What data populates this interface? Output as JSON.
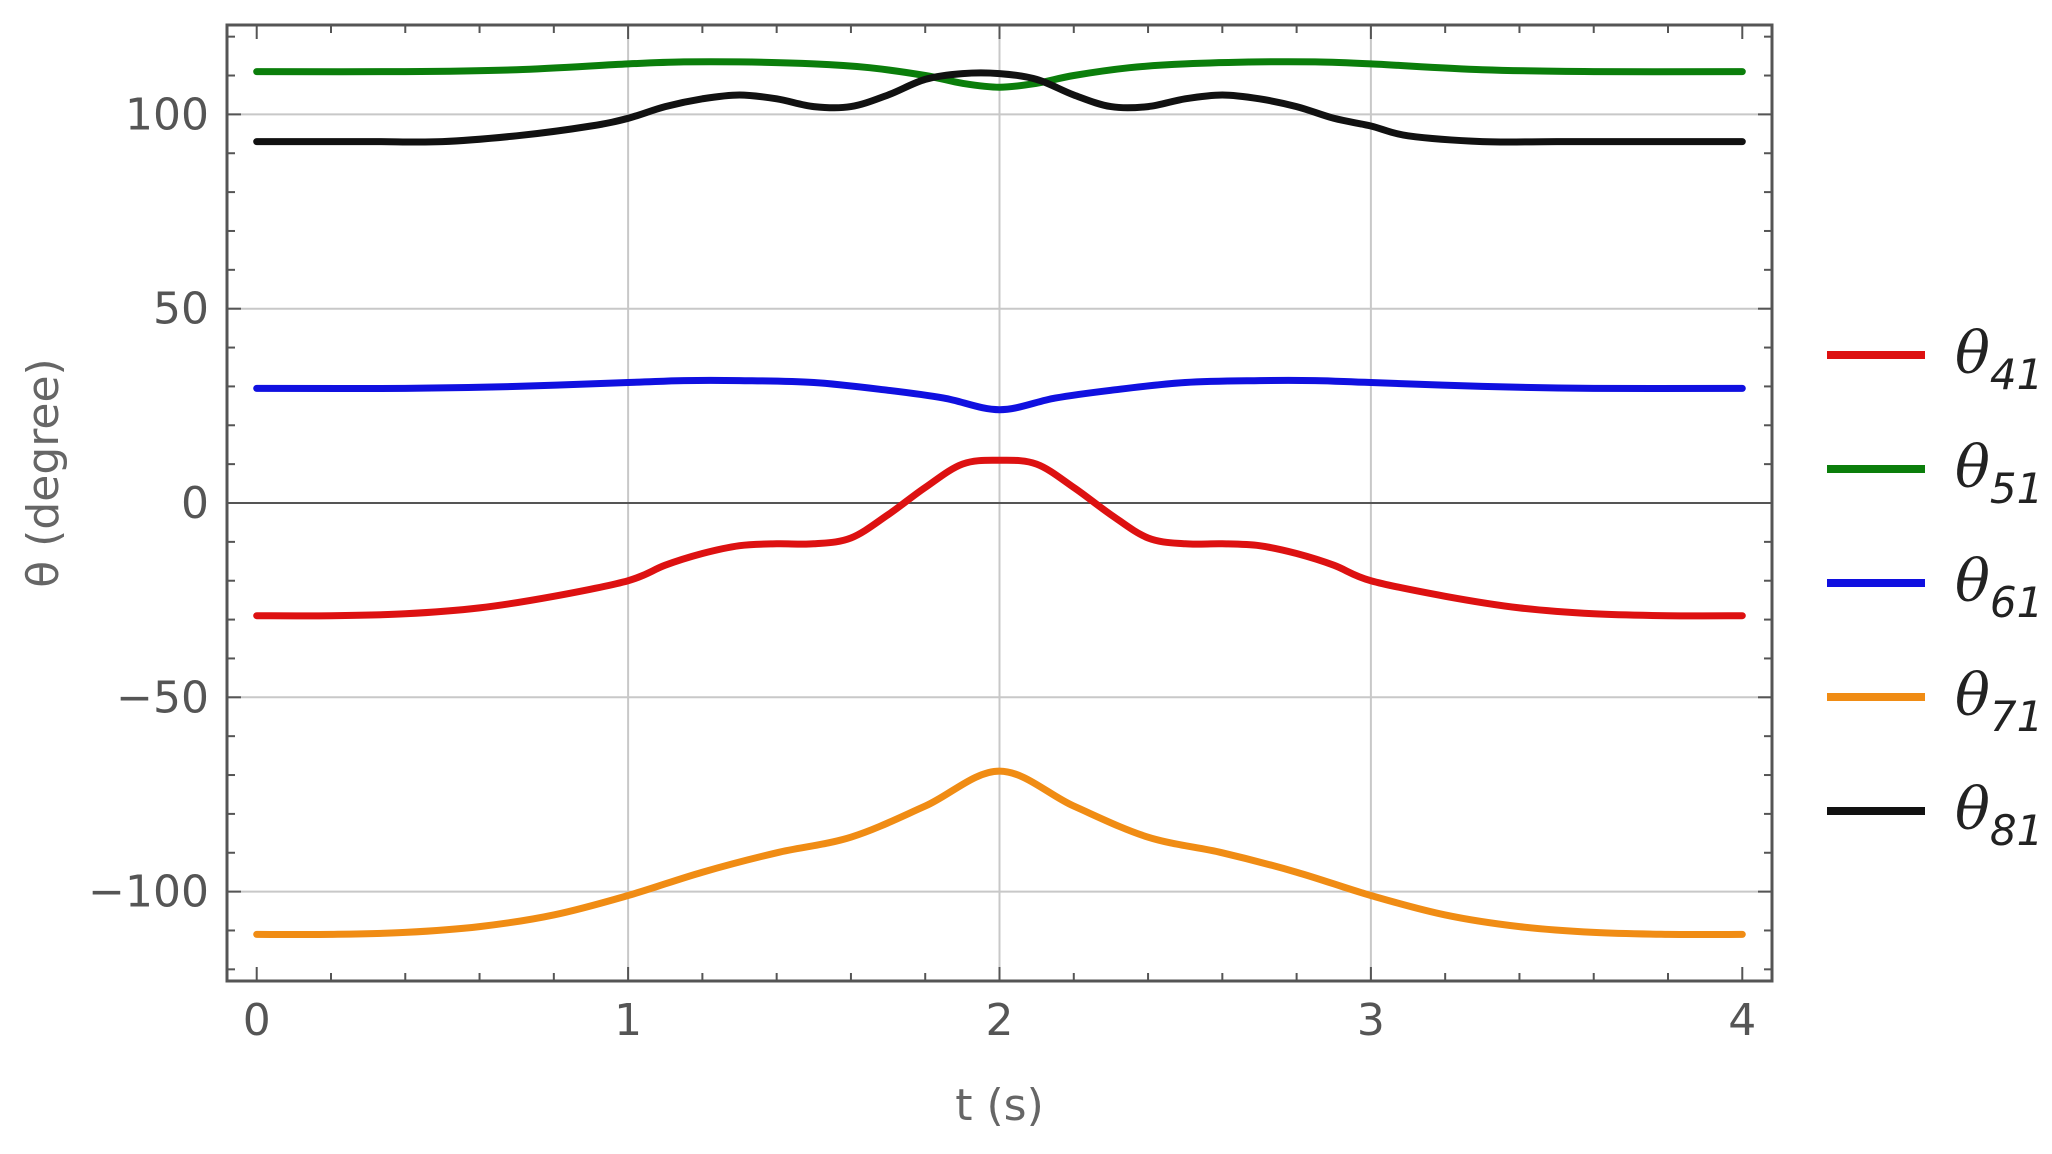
{
  "chart_data": {
    "type": "line",
    "xlabel": "t (s)",
    "ylabel": "θ (degree)",
    "xlim": [
      -0.08,
      4.08
    ],
    "ylim": [
      -123,
      123
    ],
    "xticks": [
      0,
      1,
      2,
      3,
      4
    ],
    "yticks": [
      -100,
      -50,
      0,
      50,
      100
    ],
    "grid": true,
    "legend_position": "right",
    "series": [
      {
        "name": "θ41",
        "symbol": "θ",
        "subscript": "41",
        "color": "#dd1111",
        "x": [
          0,
          0.2,
          0.4,
          0.6,
          0.8,
          1.0,
          1.1,
          1.2,
          1.3,
          1.4,
          1.5,
          1.6,
          1.7,
          1.8,
          1.9,
          2.0,
          2.1,
          2.2,
          2.3,
          2.4,
          2.5,
          2.6,
          2.7,
          2.8,
          2.9,
          3.0,
          3.2,
          3.4,
          3.6,
          3.8,
          4.0
        ],
        "values": [
          -29,
          -29,
          -28.5,
          -27,
          -24,
          -20,
          -16,
          -13,
          -11,
          -10.5,
          -10.5,
          -9,
          -3,
          4,
          10,
          11,
          10,
          4,
          -3,
          -9,
          -10.5,
          -10.5,
          -11,
          -13,
          -16,
          -20,
          -24,
          -27,
          -28.5,
          -29,
          -29
        ]
      },
      {
        "name": "θ51",
        "symbol": "θ",
        "subscript": "51",
        "color": "#0b7e0b",
        "x": [
          0,
          0.4,
          0.7,
          1.0,
          1.15,
          1.3,
          1.5,
          1.65,
          1.8,
          1.9,
          2.0,
          2.1,
          2.2,
          2.35,
          2.5,
          2.7,
          2.85,
          3.0,
          3.3,
          3.6,
          4.0
        ],
        "values": [
          111,
          111,
          111.5,
          113,
          113.5,
          113.5,
          113,
          112,
          110,
          108,
          107,
          108,
          110,
          112,
          113,
          113.5,
          113.5,
          113,
          111.5,
          111,
          111
        ]
      },
      {
        "name": "θ61",
        "symbol": "θ",
        "subscript": "61",
        "color": "#1010e0",
        "x": [
          0,
          0.4,
          0.7,
          1.0,
          1.15,
          1.3,
          1.5,
          1.7,
          1.85,
          2.0,
          2.15,
          2.3,
          2.5,
          2.7,
          2.85,
          3.0,
          3.3,
          3.6,
          4.0
        ],
        "values": [
          29.5,
          29.5,
          30,
          31,
          31.5,
          31.5,
          31,
          29,
          27,
          24,
          27,
          29,
          31,
          31.5,
          31.5,
          31,
          30,
          29.5,
          29.5
        ]
      },
      {
        "name": "θ71",
        "symbol": "θ",
        "subscript": "71",
        "color": "#f08c14",
        "x": [
          0,
          0.2,
          0.4,
          0.6,
          0.8,
          1.0,
          1.2,
          1.4,
          1.6,
          1.8,
          2.0,
          2.2,
          2.4,
          2.6,
          2.8,
          3.0,
          3.2,
          3.4,
          3.6,
          3.8,
          4.0
        ],
        "values": [
          -111,
          -111,
          -110.5,
          -109,
          -106,
          -101,
          -95,
          -90,
          -86,
          -78,
          -69,
          -78,
          -86,
          -90,
          -95,
          -101,
          -106,
          -109,
          -110.5,
          -111,
          -111
        ]
      },
      {
        "name": "θ81",
        "symbol": "θ",
        "subscript": "81",
        "color": "#111111",
        "x": [
          0,
          0.3,
          0.5,
          0.7,
          0.9,
          1.0,
          1.1,
          1.2,
          1.3,
          1.4,
          1.5,
          1.6,
          1.7,
          1.8,
          1.9,
          2.0,
          2.1,
          2.2,
          2.3,
          2.4,
          2.5,
          2.6,
          2.7,
          2.8,
          2.9,
          3.0,
          3.1,
          3.3,
          3.5,
          3.7,
          4.0
        ],
        "values": [
          93,
          93,
          93,
          94.5,
          97,
          99,
          102,
          104,
          105,
          104,
          102,
          102,
          105,
          109,
          110.5,
          110.5,
          109,
          105,
          102,
          102,
          104,
          105,
          104,
          102,
          99,
          97,
          94.5,
          93,
          93,
          93,
          93
        ]
      }
    ]
  }
}
